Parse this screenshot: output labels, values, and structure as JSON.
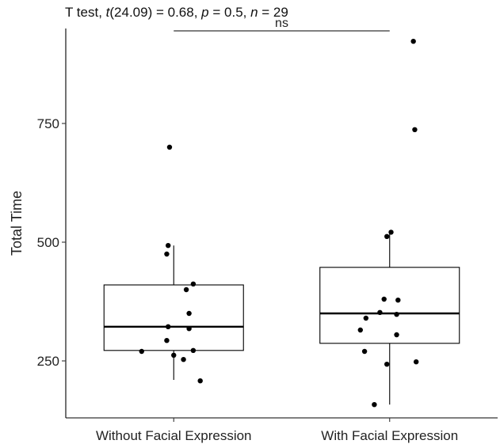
{
  "title": {
    "prefix": "T test, ",
    "t_symbol": "t",
    "df": "(24.09) = 0.68, ",
    "p_symbol": "p",
    "p_text": " = 0.5, ",
    "n_symbol": "n",
    "n_text": " = 29"
  },
  "chart_data": {
    "type": "box",
    "ylabel": "Total Time",
    "xlabel": "",
    "ylim": [
      130,
      950
    ],
    "y_ticks": [
      250,
      500,
      750
    ],
    "categories": [
      "Without Facial Expression",
      "With Facial Expression"
    ],
    "boxes": [
      {
        "name": "Without Facial Expression",
        "whisker_low": 210,
        "q1": 272,
        "median": 322,
        "q3": 410,
        "whisker_high": 493
      },
      {
        "name": "With Facial Expression",
        "whisker_low": 158,
        "q1": 287,
        "median": 350,
        "q3": 447,
        "whisker_high": 521
      }
    ],
    "points": [
      [
        {
          "jitter": -0.03,
          "y": 700
        },
        {
          "jitter": -0.04,
          "y": 493
        },
        {
          "jitter": -0.05,
          "y": 475
        },
        {
          "jitter": 0.14,
          "y": 412
        },
        {
          "jitter": 0.09,
          "y": 400
        },
        {
          "jitter": 0.11,
          "y": 350
        },
        {
          "jitter": -0.04,
          "y": 322
        },
        {
          "jitter": 0.11,
          "y": 318
        },
        {
          "jitter": -0.05,
          "y": 293
        },
        {
          "jitter": -0.23,
          "y": 270
        },
        {
          "jitter": 0.14,
          "y": 272
        },
        {
          "jitter": 0.0,
          "y": 262
        },
        {
          "jitter": 0.07,
          "y": 253
        },
        {
          "jitter": 0.19,
          "y": 208
        }
      ],
      [
        {
          "jitter": 0.17,
          "y": 923
        },
        {
          "jitter": 0.18,
          "y": 737
        },
        {
          "jitter": 0.01,
          "y": 521
        },
        {
          "jitter": -0.02,
          "y": 512
        },
        {
          "jitter": -0.04,
          "y": 380
        },
        {
          "jitter": 0.06,
          "y": 378
        },
        {
          "jitter": -0.07,
          "y": 352
        },
        {
          "jitter": 0.05,
          "y": 348
        },
        {
          "jitter": -0.17,
          "y": 340
        },
        {
          "jitter": -0.21,
          "y": 315
        },
        {
          "jitter": 0.05,
          "y": 305
        },
        {
          "jitter": -0.18,
          "y": 270
        },
        {
          "jitter": 0.19,
          "y": 248
        },
        {
          "jitter": -0.02,
          "y": 243
        },
        {
          "jitter": -0.11,
          "y": 158
        }
      ]
    ],
    "significance": {
      "label": "ns",
      "y": 945
    },
    "grid": false,
    "legend": "none"
  }
}
